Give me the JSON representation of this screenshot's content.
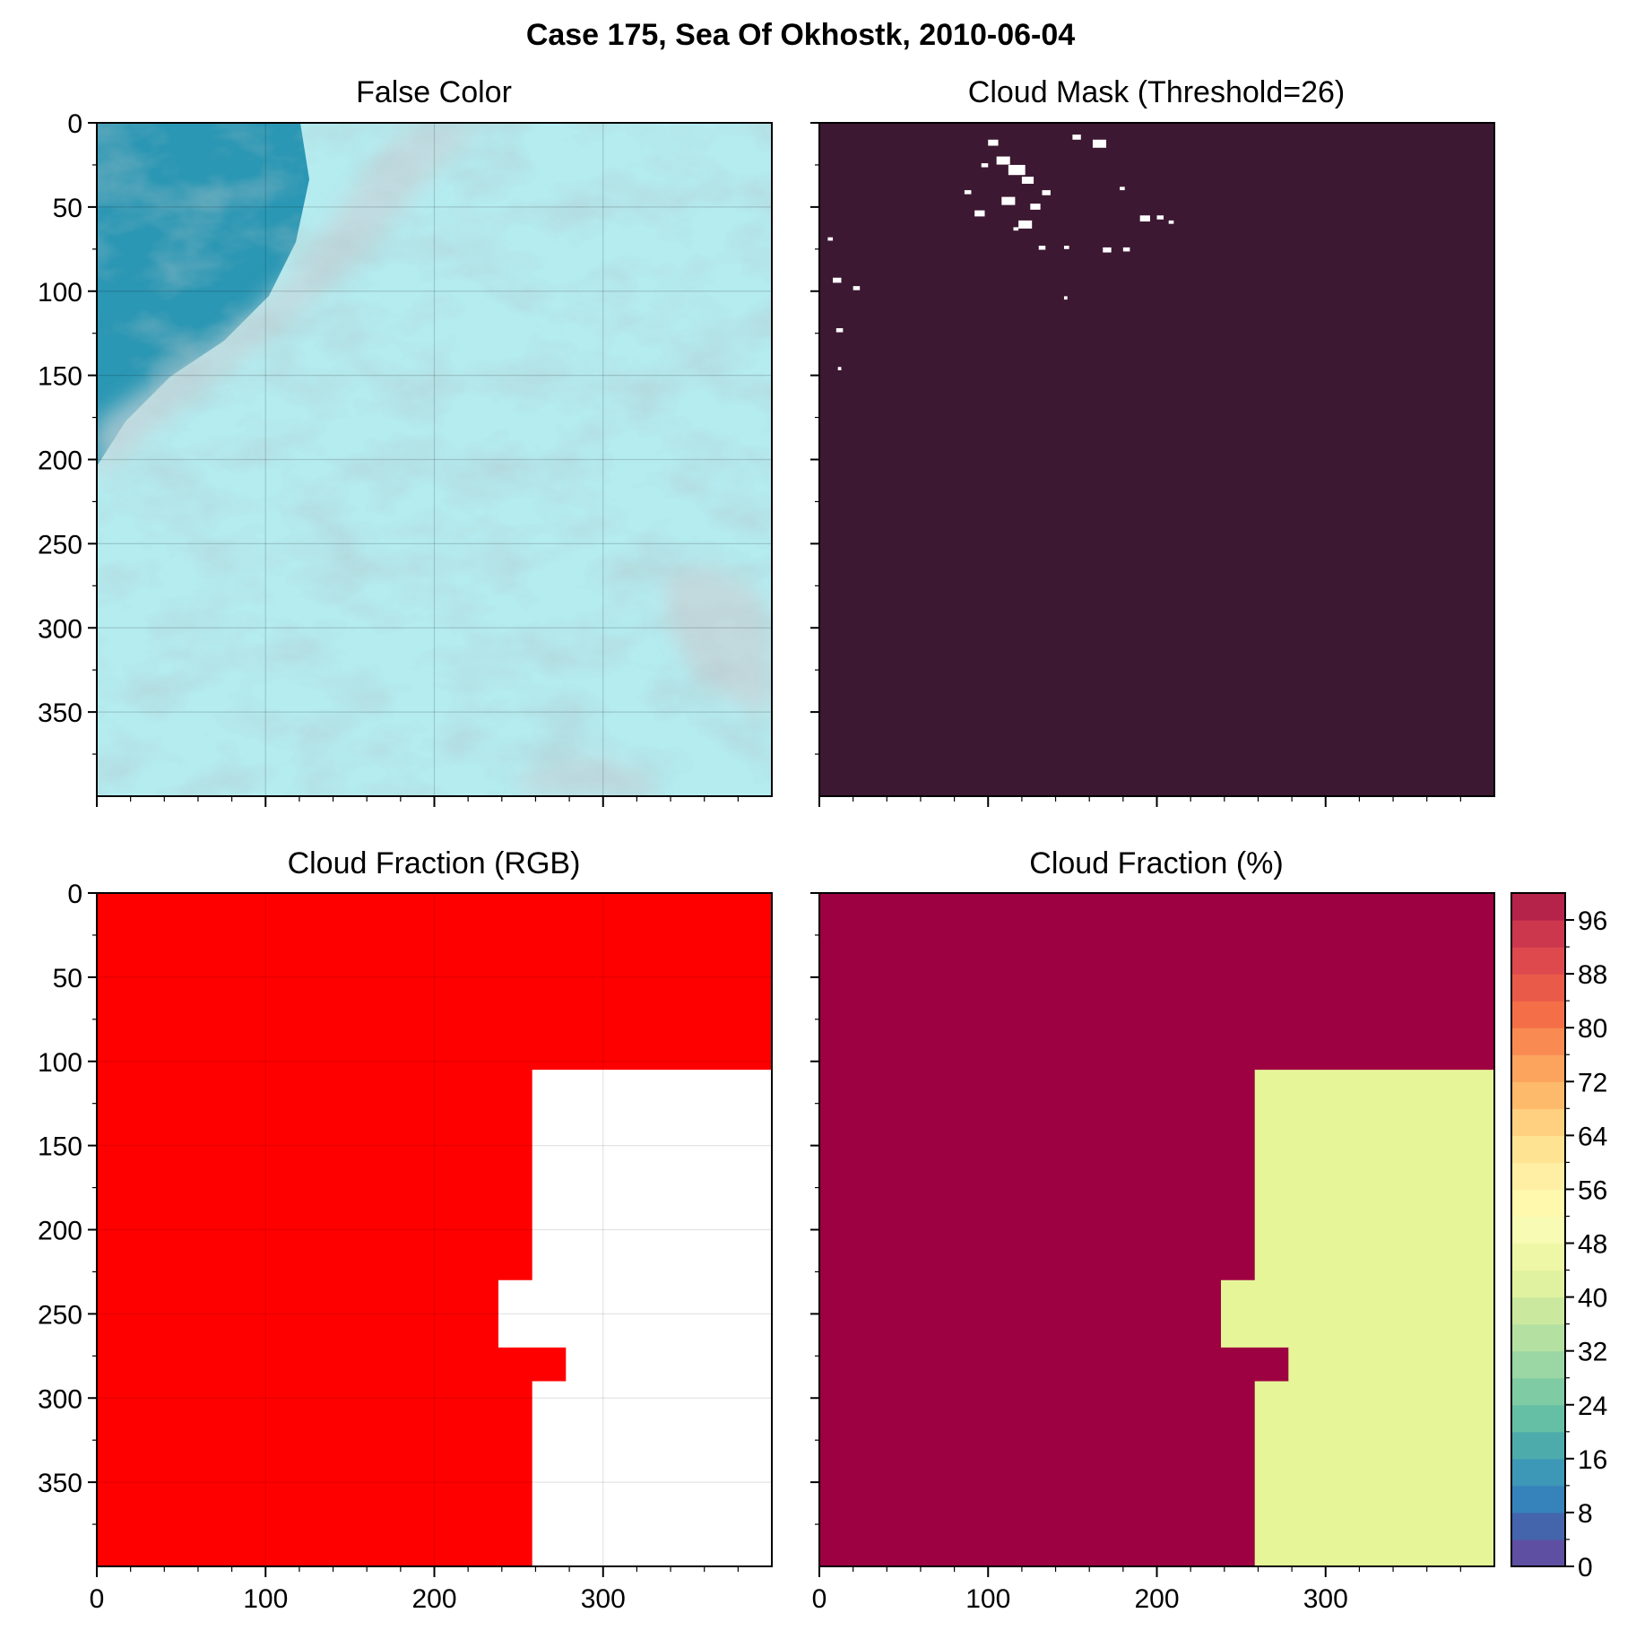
{
  "figure": {
    "title": "Case 175, Sea Of Okhostk, 2010-06-04"
  },
  "colors": {
    "mask_clear": "#3d1832",
    "mask_cloud": "#ffffff",
    "rgb_cloud": "#ff0000",
    "rgb_clear": "#ffffff",
    "pct_high": "#9e0142",
    "pct_low": "#e6f598",
    "false_color_base": "#b4ecf0",
    "false_color_water": "#2a97b4",
    "false_color_haze": "#c6d4d8"
  },
  "chart_data": [
    {
      "type": "heatmap",
      "title": "False Color",
      "image": "false-color composite",
      "xlim": [
        0,
        400
      ],
      "ylim": [
        400,
        0
      ],
      "xticks": [
        "0",
        "100",
        "200",
        "300"
      ],
      "yticks": [
        "0",
        "50",
        "100",
        "150",
        "200",
        "250",
        "300",
        "350"
      ],
      "grid": true
    },
    {
      "type": "heatmap",
      "title": "Cloud Mask (Threshold=26)",
      "threshold": 26,
      "xlim": [
        0,
        400
      ],
      "ylim": [
        400,
        0
      ],
      "cloud_pixels": [
        [
          100,
          10,
          6
        ],
        [
          105,
          20,
          8
        ],
        [
          112,
          25,
          10
        ],
        [
          96,
          24,
          4
        ],
        [
          120,
          32,
          7
        ],
        [
          86,
          40,
          4
        ],
        [
          108,
          44,
          8
        ],
        [
          92,
          52,
          6
        ],
        [
          118,
          58,
          8
        ],
        [
          125,
          48,
          6
        ],
        [
          132,
          40,
          5
        ],
        [
          150,
          7,
          5
        ],
        [
          162,
          10,
          8
        ],
        [
          178,
          38,
          3
        ],
        [
          190,
          55,
          6
        ],
        [
          200,
          55,
          4
        ],
        [
          115,
          62,
          3
        ],
        [
          130,
          73,
          4
        ],
        [
          145,
          73,
          3
        ],
        [
          168,
          74,
          5
        ],
        [
          180,
          74,
          4
        ],
        [
          207,
          58,
          3
        ],
        [
          8,
          92,
          5
        ],
        [
          20,
          97,
          4
        ],
        [
          5,
          68,
          3
        ],
        [
          10,
          122,
          4
        ],
        [
          11,
          145,
          2
        ],
        [
          145,
          103,
          2
        ]
      ],
      "grid": false
    },
    {
      "type": "heatmap",
      "title": "Cloud Fraction (RGB)",
      "xlim": [
        0,
        400
      ],
      "ylim": [
        400,
        0
      ],
      "xticks": [
        "0",
        "100",
        "200",
        "300"
      ],
      "yticks": [
        "0",
        "50",
        "100",
        "150",
        "200",
        "250",
        "300",
        "350"
      ],
      "clear_region": [
        [
          258,
          105
        ],
        [
          400,
          105
        ],
        [
          400,
          400
        ],
        [
          258,
          400
        ],
        [
          258,
          290
        ],
        [
          278,
          290
        ],
        [
          278,
          270
        ],
        [
          238,
          270
        ],
        [
          238,
          230
        ],
        [
          258,
          230
        ]
      ],
      "grid": true
    },
    {
      "type": "heatmap",
      "title": "Cloud Fraction (%)",
      "xlim": [
        0,
        400
      ],
      "ylim": [
        400,
        0
      ],
      "xticks": [
        "0",
        "100",
        "200",
        "300"
      ],
      "values": {
        "cloudy_region": 100,
        "clear_region": 42
      },
      "clear_region": [
        [
          258,
          105
        ],
        [
          400,
          105
        ],
        [
          400,
          400
        ],
        [
          258,
          400
        ],
        [
          258,
          290
        ],
        [
          278,
          290
        ],
        [
          278,
          270
        ],
        [
          238,
          270
        ],
        [
          238,
          230
        ],
        [
          258,
          230
        ]
      ],
      "colorbar": {
        "range": [
          0,
          100
        ],
        "step": 4,
        "ticks": [
          "0",
          "8",
          "16",
          "24",
          "32",
          "40",
          "48",
          "56",
          "64",
          "72",
          "80",
          "88",
          "96"
        ],
        "colors": [
          "#5e4fa2",
          "#4465ab",
          "#3682ba",
          "#3d98b8",
          "#4dabac",
          "#64bfa4",
          "#7fcba4",
          "#9ad7a4",
          "#b4e1a2",
          "#cbe99e",
          "#e0f2a0",
          "#edf7a5",
          "#f7fbb3",
          "#fff9ae",
          "#feefa4",
          "#fee393",
          "#fed07f",
          "#fdba6b",
          "#fca35e",
          "#f98b52",
          "#f46e47",
          "#ea5a49",
          "#dd494d",
          "#cc374e",
          "#b6234a"
        ]
      }
    }
  ]
}
